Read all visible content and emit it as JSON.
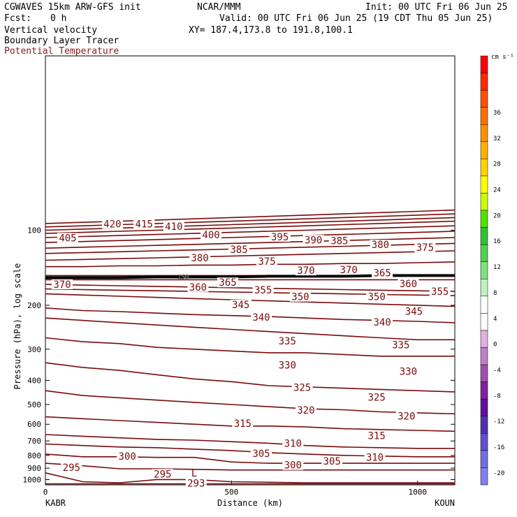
{
  "header": {
    "model": "CGWAVES 15km ARW-GFS init",
    "org": "NCAR/MMM",
    "init": "Init: 00 UTC Fri 06 Jun 25",
    "fcst_label": "Fcst:",
    "fcst_value": "0 h",
    "valid": "Valid: 00 UTC Fri 06 Jun 25 (19 CDT Thu 05 Jun 25)",
    "field1": "Vertical velocity",
    "xy": "XY= 187.4,173.8 to 191.8,100.1",
    "field2": "Boundary Layer Tracer",
    "field3": "Potential Temperature"
  },
  "colors": {
    "theta": "#7a0a0a",
    "field3_text": "#8b1a1a",
    "tropopause": "#000000"
  },
  "chart_data": {
    "type": "contour",
    "ylabel": "Pressure (hPa), log scale",
    "xlabel": "Distance (km)",
    "x_start_label": "KABR",
    "x_end_label": "KOUN",
    "xlim": [
      0,
      1100
    ],
    "x_ticks": [
      0,
      500,
      1000
    ],
    "ylim_hpa": [
      1050,
      20
    ],
    "y_scale": "log",
    "y_ticks": [
      100,
      200,
      300,
      400,
      500,
      600,
      700,
      800,
      900,
      1000
    ],
    "tropopause_label": "150",
    "contour_interval_K": 5,
    "theta_levels_K": [
      {
        "k": 293,
        "p": [
          1040,
          1040,
          1040,
          1040,
          1040,
          1040,
          1040,
          1040,
          1040,
          1040,
          1040,
          1040
        ]
      },
      {
        "k": 295,
        "p": [
          940,
          1020,
          1030,
          1000,
          1000,
          1020,
          1025,
          1030,
          1030,
          1030,
          1030,
          1030
        ]
      },
      {
        "k": 300,
        "p": [
          860,
          880,
          905,
          905,
          910,
          915,
          915,
          915,
          915,
          915,
          915,
          915
        ]
      },
      {
        "k": 305,
        "p": [
          790,
          810,
          810,
          815,
          815,
          850,
          860,
          860,
          860,
          860,
          860,
          860
        ]
      },
      {
        "k": 310,
        "p": [
          720,
          730,
          740,
          745,
          755,
          765,
          780,
          790,
          800,
          805,
          810,
          810
        ]
      },
      {
        "k": 315,
        "p": [
          660,
          670,
          680,
          690,
          695,
          705,
          715,
          730,
          740,
          745,
          750,
          750
        ]
      },
      {
        "k": 320,
        "p": [
          560,
          570,
          580,
          590,
          600,
          610,
          610,
          615,
          625,
          630,
          635,
          640
        ]
      },
      {
        "k": 325,
        "p": [
          440,
          460,
          470,
          480,
          490,
          500,
          510,
          520,
          525,
          535,
          540,
          545
        ]
      },
      {
        "k": 330,
        "p": [
          340,
          355,
          365,
          380,
          395,
          405,
          420,
          425,
          430,
          435,
          440,
          445
        ]
      },
      {
        "k": 335,
        "p": [
          270,
          280,
          285,
          295,
          300,
          305,
          310,
          310,
          315,
          320,
          320,
          320
        ]
      },
      {
        "k": 340,
        "p": [
          225,
          230,
          235,
          240,
          245,
          250,
          255,
          260,
          265,
          270,
          275,
          275
        ]
      },
      {
        "k": 345,
        "p": [
          205,
          210,
          212,
          215,
          218,
          220,
          222,
          225,
          228,
          230,
          232,
          235
        ]
      },
      {
        "k": 350,
        "p": [
          180,
          182,
          184,
          186,
          188,
          190,
          192,
          194,
          196,
          198,
          200,
          202
        ]
      },
      {
        "k": 355,
        "p": [
          172,
          173,
          174,
          175,
          176,
          177,
          178,
          179,
          180,
          181,
          182,
          183
        ]
      },
      {
        "k": 360,
        "p": [
          165,
          166,
          167,
          168,
          169,
          170,
          171,
          172,
          173,
          174,
          175,
          176
        ]
      },
      {
        "k": 365,
        "p": [
          158,
          158,
          158,
          158,
          158,
          158,
          158,
          158,
          158,
          158,
          158,
          158
        ]
      },
      {
        "k": 370,
        "p": [
          152,
          152,
          152,
          152,
          152,
          152,
          152,
          152,
          152,
          152,
          152,
          152
        ]
      },
      {
        "k": 375,
        "p": [
          140,
          140,
          139,
          139,
          138,
          138,
          137,
          137,
          136,
          136,
          135,
          134
        ]
      },
      {
        "k": 380,
        "p": [
          132,
          131,
          130,
          129,
          128,
          127,
          126,
          125,
          124,
          123,
          122,
          121
        ]
      },
      {
        "k": 385,
        "p": [
          124,
          123,
          122,
          121,
          120,
          119,
          118,
          117,
          116,
          115,
          114,
          113
        ]
      },
      {
        "k": 390,
        "p": [
          118,
          117,
          116,
          115,
          114,
          113,
          112,
          111,
          110,
          109,
          108,
          107
        ]
      },
      {
        "k": 395,
        "p": [
          112,
          111,
          110,
          109,
          108,
          107,
          106,
          105,
          104,
          103,
          102,
          101
        ]
      },
      {
        "k": 400,
        "p": [
          107,
          106,
          105,
          104,
          103,
          102,
          101,
          100,
          99,
          98,
          97,
          96
        ]
      },
      {
        "k": 405,
        "p": [
          103,
          102,
          101,
          100,
          99,
          98,
          97,
          96,
          95,
          94,
          93,
          92
        ]
      },
      {
        "k": 410,
        "p": [
          100,
          99,
          98,
          97,
          96,
          95,
          94,
          93,
          92,
          91,
          90,
          89
        ]
      },
      {
        "k": 415,
        "p": [
          97,
          96,
          95,
          94,
          93,
          92,
          91,
          90,
          89,
          88,
          87,
          86
        ]
      },
      {
        "k": 420,
        "p": [
          94,
          93,
          92,
          91,
          90,
          89,
          88,
          87,
          86,
          85,
          84,
          83
        ]
      }
    ],
    "contour_x_km": [
      0,
      100,
      200,
      300,
      400,
      500,
      600,
      700,
      800,
      900,
      1000,
      1100
    ],
    "contour_labels": [
      {
        "text": "420",
        "x": 180,
        "p": 95
      },
      {
        "text": "415",
        "x": 265,
        "p": 95
      },
      {
        "text": "410",
        "x": 345,
        "p": 97
      },
      {
        "text": "405",
        "x": 60,
        "p": 108
      },
      {
        "text": "400",
        "x": 445,
        "p": 105
      },
      {
        "text": "395",
        "x": 630,
        "p": 107
      },
      {
        "text": "390",
        "x": 720,
        "p": 110
      },
      {
        "text": "385",
        "x": 790,
        "p": 111
      },
      {
        "text": "380",
        "x": 900,
        "p": 115
      },
      {
        "text": "375",
        "x": 1020,
        "p": 118
      },
      {
        "text": "385",
        "x": 520,
        "p": 120
      },
      {
        "text": "380",
        "x": 415,
        "p": 130
      },
      {
        "text": "375",
        "x": 595,
        "p": 134
      },
      {
        "text": "370",
        "x": 700,
        "p": 146
      },
      {
        "text": "370",
        "x": 815,
        "p": 145
      },
      {
        "text": "365",
        "x": 905,
        "p": 149
      },
      {
        "text": "370",
        "x": 45,
        "p": 166
      },
      {
        "text": "365",
        "x": 490,
        "p": 163
      },
      {
        "text": "360",
        "x": 410,
        "p": 170
      },
      {
        "text": "360",
        "x": 975,
        "p": 165
      },
      {
        "text": "355",
        "x": 585,
        "p": 175
      },
      {
        "text": "355",
        "x": 1060,
        "p": 177
      },
      {
        "text": "350",
        "x": 685,
        "p": 186
      },
      {
        "text": "350",
        "x": 890,
        "p": 186
      },
      {
        "text": "345",
        "x": 525,
        "p": 200
      },
      {
        "text": "345",
        "x": 990,
        "p": 213
      },
      {
        "text": "340",
        "x": 580,
        "p": 225
      },
      {
        "text": "340",
        "x": 905,
        "p": 235
      },
      {
        "text": "335",
        "x": 650,
        "p": 280
      },
      {
        "text": "335",
        "x": 955,
        "p": 290
      },
      {
        "text": "330",
        "x": 650,
        "p": 350
      },
      {
        "text": "330",
        "x": 975,
        "p": 370
      },
      {
        "text": "325",
        "x": 690,
        "p": 430
      },
      {
        "text": "325",
        "x": 890,
        "p": 470
      },
      {
        "text": "320",
        "x": 700,
        "p": 530
      },
      {
        "text": "320",
        "x": 970,
        "p": 560
      },
      {
        "text": "315",
        "x": 530,
        "p": 600
      },
      {
        "text": "315",
        "x": 890,
        "p": 670
      },
      {
        "text": "310",
        "x": 665,
        "p": 720
      },
      {
        "text": "310",
        "x": 885,
        "p": 820
      },
      {
        "text": "305",
        "x": 580,
        "p": 790
      },
      {
        "text": "305",
        "x": 770,
        "p": 850
      },
      {
        "text": "300",
        "x": 220,
        "p": 810
      },
      {
        "text": "300",
        "x": 665,
        "p": 880
      },
      {
        "text": "295",
        "x": 70,
        "p": 900
      },
      {
        "text": "295",
        "x": 315,
        "p": 955
      },
      {
        "text": "293",
        "x": 405,
        "p": 1040
      }
    ],
    "low_marker": {
      "text": "L",
      "x": 400,
      "p": 940
    },
    "tropopause_p": [
      155,
      155,
      155,
      154,
      154,
      154,
      153,
      153,
      153,
      152,
      152,
      152
    ],
    "colorbar": {
      "unit": "cm s⁻¹",
      "labels": [
        "36",
        "32",
        "28",
        "24",
        "20",
        "16",
        "12",
        "8",
        "4",
        "0",
        "-4",
        "-8",
        "-12",
        "-16",
        "-20"
      ],
      "colors": [
        "#ff0000",
        "#ff2a00",
        "#ff5000",
        "#ff7000",
        "#ff9000",
        "#ffb000",
        "#ffd200",
        "#ffff00",
        "#c8ff00",
        "#55e000",
        "#30c030",
        "#50d050",
        "#80e080",
        "#c0f0c0",
        "#ffffff",
        "#ffffff",
        "#e0b0e0",
        "#c080c8",
        "#a050b0",
        "#8020a0",
        "#6010a0",
        "#5030b0",
        "#6050d0",
        "#7070e0",
        "#8080f0"
      ]
    }
  }
}
